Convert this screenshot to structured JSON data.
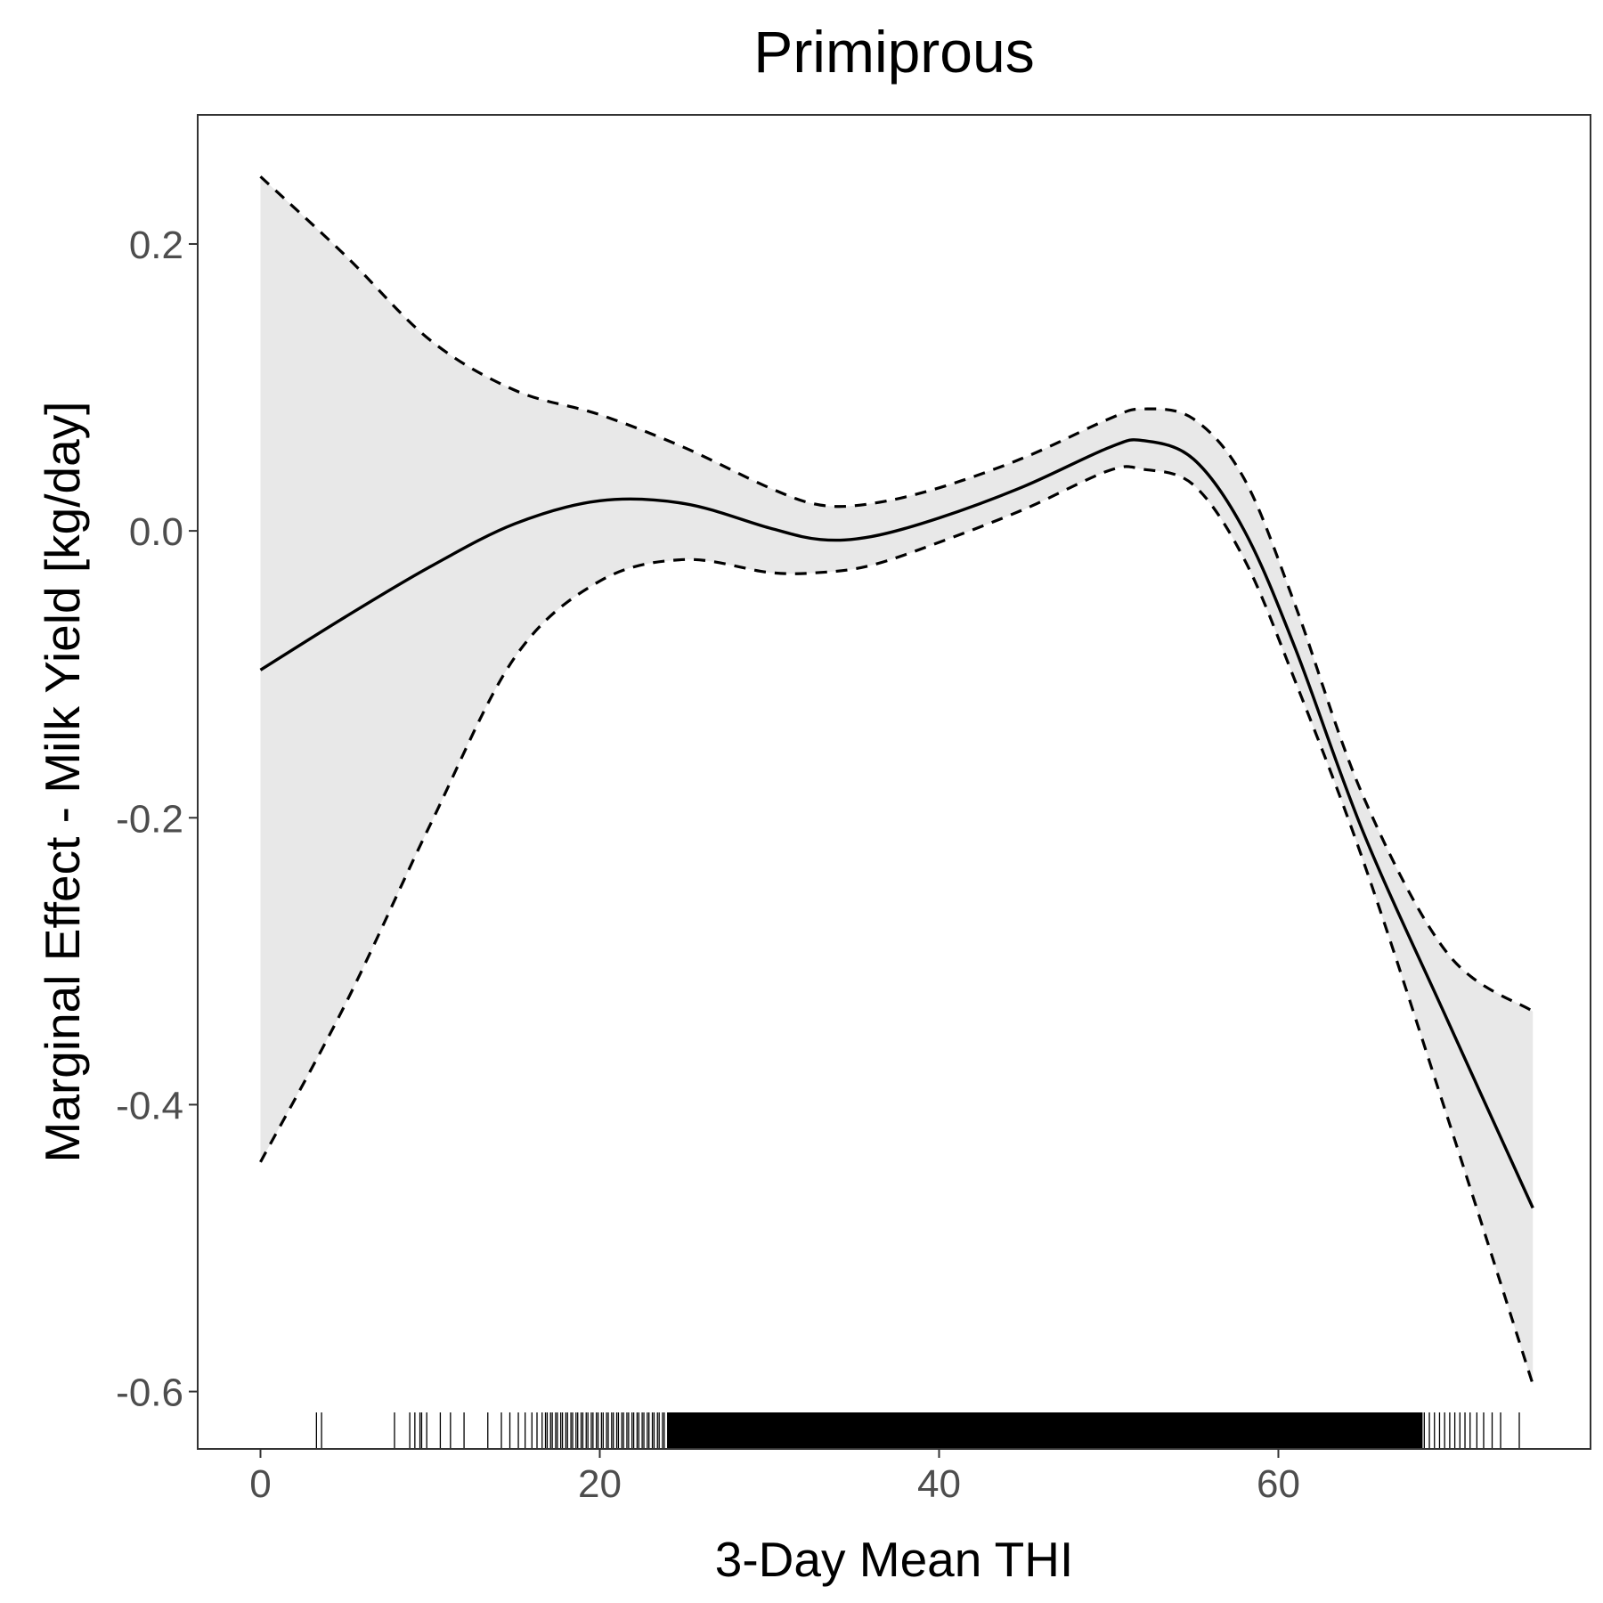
{
  "chart_data": {
    "type": "line",
    "title": "Primiprous",
    "xlabel": "3-Day Mean THI",
    "ylabel": "Marginal Effect - Milk Yield [kg/day]",
    "xlim": [
      -3.7,
      78.4
    ],
    "ylim": [
      -0.64,
      0.29
    ],
    "x_ticks": [
      0,
      20,
      40,
      60
    ],
    "x_tick_labels": [
      "0",
      "20",
      "40",
      "60"
    ],
    "y_ticks": [
      0.2,
      0.0,
      -0.2,
      -0.4,
      -0.6
    ],
    "y_tick_labels": [
      "0.2",
      "0.0",
      "-0.2",
      "-0.4",
      "-0.6"
    ],
    "grid": false,
    "legend": "none",
    "colors": {
      "line": "#000000",
      "ribbon": "#e8e8e8",
      "panel_border": "#333333",
      "tick_text": "#4d4d4d"
    },
    "series": [
      {
        "role": "estimate",
        "style": "solid",
        "x": [
          0,
          5,
          10,
          15,
          20,
          25,
          30,
          33,
          36,
          40,
          45,
          50,
          52,
          55,
          58,
          61,
          65,
          70,
          75
        ],
        "values": [
          -0.097,
          -0.06,
          -0.025,
          0.005,
          0.021,
          0.019,
          0.002,
          -0.006,
          -0.004,
          0.009,
          0.031,
          0.058,
          0.063,
          0.05,
          0.0,
          -0.082,
          -0.21,
          -0.342,
          -0.472
        ]
      },
      {
        "role": "upper",
        "style": "dashed",
        "x": [
          0,
          5,
          10,
          15,
          20,
          25,
          30,
          33,
          36,
          40,
          45,
          50,
          52,
          55,
          58,
          61,
          65,
          70,
          75
        ],
        "values": [
          0.247,
          0.192,
          0.133,
          0.098,
          0.081,
          0.058,
          0.03,
          0.018,
          0.019,
          0.03,
          0.051,
          0.078,
          0.085,
          0.078,
          0.036,
          -0.052,
          -0.185,
          -0.295,
          -0.335
        ]
      },
      {
        "role": "lower",
        "style": "dashed",
        "x": [
          0,
          5,
          10,
          15,
          20,
          25,
          30,
          33,
          36,
          40,
          45,
          50,
          52,
          55,
          58,
          61,
          65,
          70,
          75
        ],
        "values": [
          -0.44,
          -0.33,
          -0.205,
          -0.088,
          -0.035,
          -0.02,
          -0.029,
          -0.029,
          -0.024,
          -0.008,
          0.015,
          0.042,
          0.043,
          0.032,
          -0.02,
          -0.105,
          -0.23,
          -0.41,
          -0.595
        ]
      }
    ],
    "rug": {
      "x": [
        3.3,
        3.6,
        7.9,
        8.8,
        9.1,
        9.4,
        9.5,
        9.8,
        10.6,
        11.2,
        12,
        13.4,
        14.2,
        14.7,
        15.2,
        15.6,
        16,
        16.3,
        16.6,
        16.8,
        16.9,
        17.1,
        17.2,
        17.4,
        17.5,
        17.7,
        17.8,
        18,
        18.1,
        18.3,
        18.4,
        18.6,
        18.7,
        18.9,
        19,
        19.2,
        19.3,
        19.5,
        19.6,
        19.8,
        19.9,
        20.1,
        20.2,
        20.4,
        20.5,
        20.7,
        20.8,
        21,
        21.1,
        21.3,
        21.4,
        21.6,
        21.7,
        21.9,
        22,
        22.2,
        22.3,
        22.5,
        22.6,
        22.8,
        22.9,
        23.1,
        23.2,
        23.4,
        23.5,
        23.7,
        23.8,
        24,
        68.6,
        68.9,
        69.2,
        69.5,
        69.8,
        70.1,
        70.4,
        70.7,
        71,
        71.3,
        71.7,
        72.1,
        72.6,
        73.1,
        74.2
      ],
      "dense_range": [
        24,
        68.5
      ]
    }
  }
}
